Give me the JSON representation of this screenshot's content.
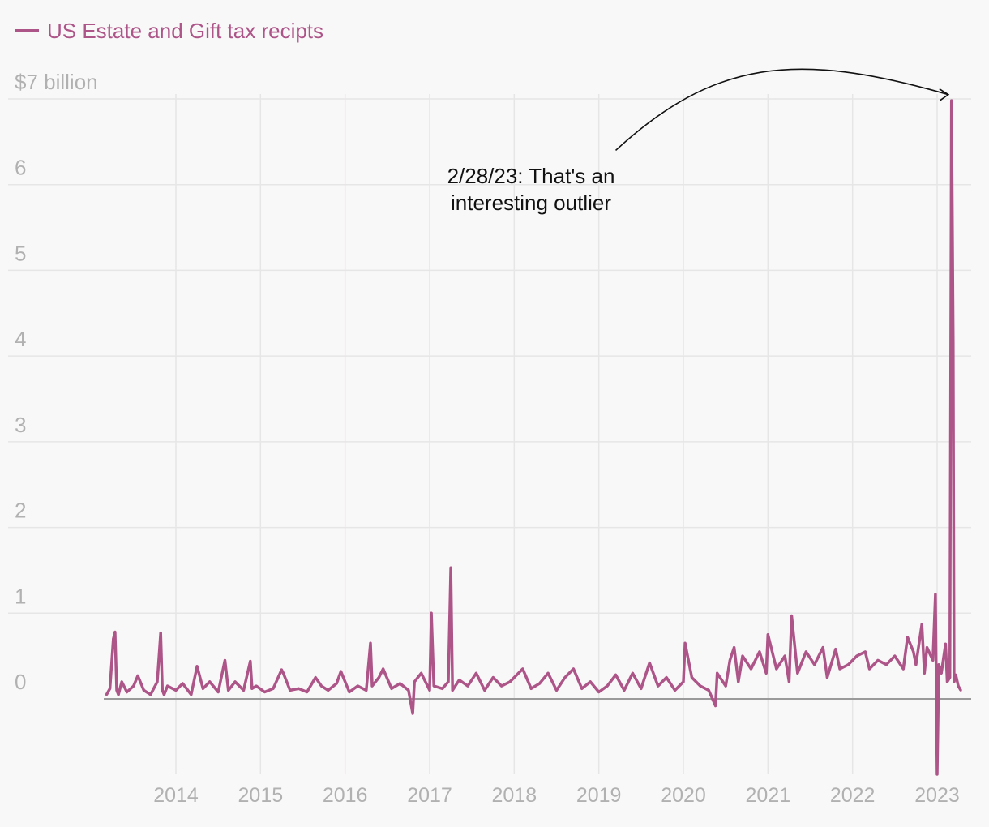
{
  "chart_data": {
    "type": "line",
    "legend": {
      "label": "US Estate and Gift tax recipts",
      "position": "top-left"
    },
    "series_color": "#ad5488",
    "y_unit_label": "$7 billion",
    "ylim": [
      -0.9,
      7.1
    ],
    "yticks": [
      {
        "value": 7,
        "label": "$7 billion"
      },
      {
        "value": 6,
        "label": "6"
      },
      {
        "value": 5,
        "label": "5"
      },
      {
        "value": 4,
        "label": "4"
      },
      {
        "value": 3,
        "label": "3"
      },
      {
        "value": 2,
        "label": "2"
      },
      {
        "value": 1,
        "label": "1"
      },
      {
        "value": 0,
        "label": "0"
      }
    ],
    "xlim": [
      2013.1,
      2023.4
    ],
    "xticks": [
      {
        "value": 2014,
        "label": "2014"
      },
      {
        "value": 2015,
        "label": "2015"
      },
      {
        "value": 2016,
        "label": "2016"
      },
      {
        "value": 2017,
        "label": "2017"
      },
      {
        "value": 2018,
        "label": "2018"
      },
      {
        "value": 2019,
        "label": "2019"
      },
      {
        "value": 2020,
        "label": "2020"
      },
      {
        "value": 2021,
        "label": "2021"
      },
      {
        "value": 2022,
        "label": "2022"
      },
      {
        "value": 2023,
        "label": "2023"
      }
    ],
    "series": [
      {
        "name": "US Estate and Gift tax recipts",
        "x": [
          2013.18,
          2013.22,
          2013.26,
          2013.28,
          2013.3,
          2013.32,
          2013.36,
          2013.42,
          2013.5,
          2013.55,
          2013.62,
          2013.7,
          2013.78,
          2013.82,
          2013.84,
          2013.86,
          2013.9,
          2014.0,
          2014.08,
          2014.18,
          2014.25,
          2014.32,
          2014.4,
          2014.5,
          2014.58,
          2014.62,
          2014.7,
          2014.8,
          2014.88,
          2014.9,
          2014.95,
          2015.05,
          2015.15,
          2015.25,
          2015.27,
          2015.35,
          2015.45,
          2015.55,
          2015.65,
          2015.72,
          2015.8,
          2015.9,
          2015.95,
          2016.05,
          2016.15,
          2016.25,
          2016.3,
          2016.32,
          2016.4,
          2016.45,
          2016.55,
          2016.65,
          2016.75,
          2016.8,
          2016.82,
          2016.9,
          2017.0,
          2017.02,
          2017.05,
          2017.15,
          2017.22,
          2017.25,
          2017.27,
          2017.35,
          2017.45,
          2017.55,
          2017.65,
          2017.75,
          2017.85,
          2017.95,
          2018.1,
          2018.2,
          2018.3,
          2018.4,
          2018.5,
          2018.6,
          2018.7,
          2018.8,
          2018.9,
          2019.0,
          2019.1,
          2019.2,
          2019.3,
          2019.4,
          2019.5,
          2019.6,
          2019.7,
          2019.8,
          2019.9,
          2020.0,
          2020.02,
          2020.1,
          2020.2,
          2020.3,
          2020.38,
          2020.4,
          2020.5,
          2020.55,
          2020.6,
          2020.65,
          2020.7,
          2020.8,
          2020.9,
          2020.98,
          2021.0,
          2021.1,
          2021.2,
          2021.25,
          2021.28,
          2021.35,
          2021.45,
          2021.55,
          2021.65,
          2021.7,
          2021.8,
          2021.85,
          2021.95,
          2022.05,
          2022.15,
          2022.2,
          2022.3,
          2022.4,
          2022.5,
          2022.6,
          2022.65,
          2022.72,
          2022.75,
          2022.82,
          2022.85,
          2022.88,
          2022.95,
          2022.98,
          2023.0,
          2023.02,
          2023.05,
          2023.1,
          2023.12,
          2023.15,
          2023.17,
          2023.19,
          2023.2,
          2023.22,
          2023.25,
          2023.28
        ],
        "values": [
          0.05,
          0.12,
          0.7,
          0.78,
          0.1,
          0.05,
          0.2,
          0.08,
          0.15,
          0.27,
          0.1,
          0.05,
          0.2,
          0.77,
          0.1,
          0.05,
          0.15,
          0.1,
          0.18,
          0.05,
          0.38,
          0.12,
          0.2,
          0.08,
          0.45,
          0.1,
          0.2,
          0.1,
          0.44,
          0.12,
          0.15,
          0.08,
          0.12,
          0.34,
          0.3,
          0.1,
          0.12,
          0.08,
          0.25,
          0.15,
          0.1,
          0.18,
          0.32,
          0.08,
          0.15,
          0.1,
          0.65,
          0.15,
          0.25,
          0.35,
          0.12,
          0.18,
          0.1,
          -0.17,
          0.2,
          0.3,
          0.1,
          1.0,
          0.15,
          0.12,
          0.2,
          1.53,
          0.1,
          0.22,
          0.15,
          0.3,
          0.1,
          0.25,
          0.15,
          0.2,
          0.35,
          0.12,
          0.18,
          0.3,
          0.1,
          0.25,
          0.35,
          0.12,
          0.2,
          0.08,
          0.15,
          0.28,
          0.1,
          0.3,
          0.12,
          0.42,
          0.15,
          0.25,
          0.1,
          0.2,
          0.65,
          0.25,
          0.15,
          0.1,
          -0.08,
          0.3,
          0.15,
          0.45,
          0.6,
          0.2,
          0.5,
          0.35,
          0.55,
          0.3,
          0.75,
          0.35,
          0.5,
          0.2,
          0.97,
          0.3,
          0.55,
          0.4,
          0.6,
          0.25,
          0.58,
          0.35,
          0.4,
          0.5,
          0.55,
          0.35,
          0.45,
          0.4,
          0.5,
          0.35,
          0.72,
          0.55,
          0.4,
          0.87,
          0.3,
          0.6,
          0.45,
          1.22,
          -0.88,
          0.4,
          0.3,
          0.64,
          0.2,
          0.25,
          6.98,
          4.15,
          0.2,
          0.28,
          0.15,
          0.1
        ]
      }
    ],
    "annotation": {
      "line1": "2/28/23: That's an",
      "line2": "interesting outlier",
      "arrow_from": {
        "x": 2019.2,
        "y": 6.4
      },
      "arrow_to": {
        "x": 2023.19,
        "y": 7.05
      }
    }
  }
}
